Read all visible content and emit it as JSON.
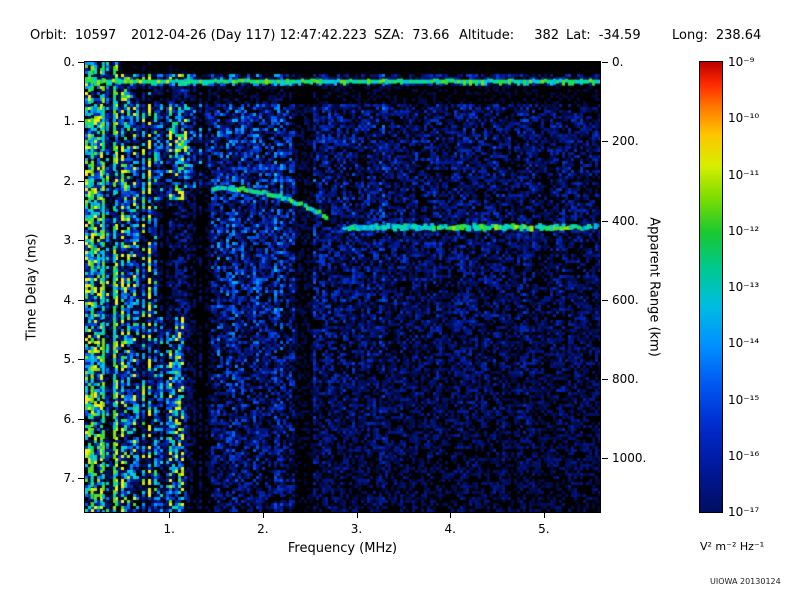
{
  "header": {
    "orbit_label": "Orbit:",
    "orbit_value": "10597",
    "datetime": "2012-04-26 (Day 117) 12:47:42.223",
    "sza_label": "SZA:",
    "sza_value": "73.66",
    "altitude_label": "Altitude:",
    "altitude_value": "382",
    "lat_label": "Lat:",
    "lat_value": "-34.59",
    "long_label": "Long:",
    "long_value": "238.64"
  },
  "footer": {
    "watermark": "UIOWA 20130124"
  },
  "chart_data": {
    "type": "heatmap",
    "xlabel": "Frequency (MHz)",
    "ylabel_left": "Time Delay (ms)",
    "ylabel_right": "Apparent Range (km)",
    "x_range_mhz": [
      0.1,
      5.6
    ],
    "x_ticks": [
      1,
      2,
      3,
      4,
      5
    ],
    "x_tick_labels": [
      "1.",
      "2.",
      "3.",
      "4.",
      "5."
    ],
    "y_range_ms": [
      0,
      7.57
    ],
    "y_ticks_ms": [
      0,
      1,
      2,
      3,
      4,
      5,
      6,
      7
    ],
    "y_tick_labels": [
      "0.",
      "1.",
      "2.",
      "3.",
      "4.",
      "5.",
      "6.",
      "7."
    ],
    "right_axis": {
      "ticks_km": [
        0,
        200,
        400,
        600,
        800,
        1000
      ],
      "tick_labels": [
        "0.",
        "200.",
        "400.",
        "600.",
        "800.",
        "1000."
      ],
      "km_per_ms": 150
    },
    "colorbar": {
      "tick_labels": [
        "10⁻⁹",
        "10⁻¹⁰",
        "10⁻¹¹",
        "10⁻¹²",
        "10⁻¹³",
        "10⁻¹⁴",
        "10⁻¹⁵",
        "10⁻¹⁶",
        "10⁻¹⁷"
      ],
      "unit": "V² m⁻² Hz⁻¹",
      "gradient_stops": [
        [
          0.0,
          "#bb0000"
        ],
        [
          0.05,
          "#ff2a00"
        ],
        [
          0.1,
          "#ff7700"
        ],
        [
          0.16,
          "#ffc400"
        ],
        [
          0.23,
          "#d8ee00"
        ],
        [
          0.3,
          "#7fdd00"
        ],
        [
          0.38,
          "#18c832"
        ],
        [
          0.46,
          "#00c890"
        ],
        [
          0.54,
          "#00bde0"
        ],
        [
          0.63,
          "#0090ff"
        ],
        [
          0.72,
          "#0055f0"
        ],
        [
          0.82,
          "#0028c8"
        ],
        [
          0.92,
          "#001690"
        ],
        [
          1.0,
          "#000d60"
        ]
      ]
    },
    "features": {
      "seed": 42,
      "surface_reflection_ms": 0.33,
      "ionosphere_echo_trace": {
        "t_ms": 2.78,
        "f_start_mhz": 2.85,
        "f_end_mhz": 5.55
      },
      "ionogram_hook": {
        "f_start_mhz": 1.45,
        "f_end_mhz": 2.68,
        "t_start_ms": 2.12,
        "t_end_ms": 2.62
      },
      "attenuation_band_mhz": [
        2.33,
        2.52
      ],
      "plasma_harmonic_columns_mhz": [
        0.16,
        0.28,
        0.4
      ],
      "left_echo_period_ms": 0.95
    }
  }
}
